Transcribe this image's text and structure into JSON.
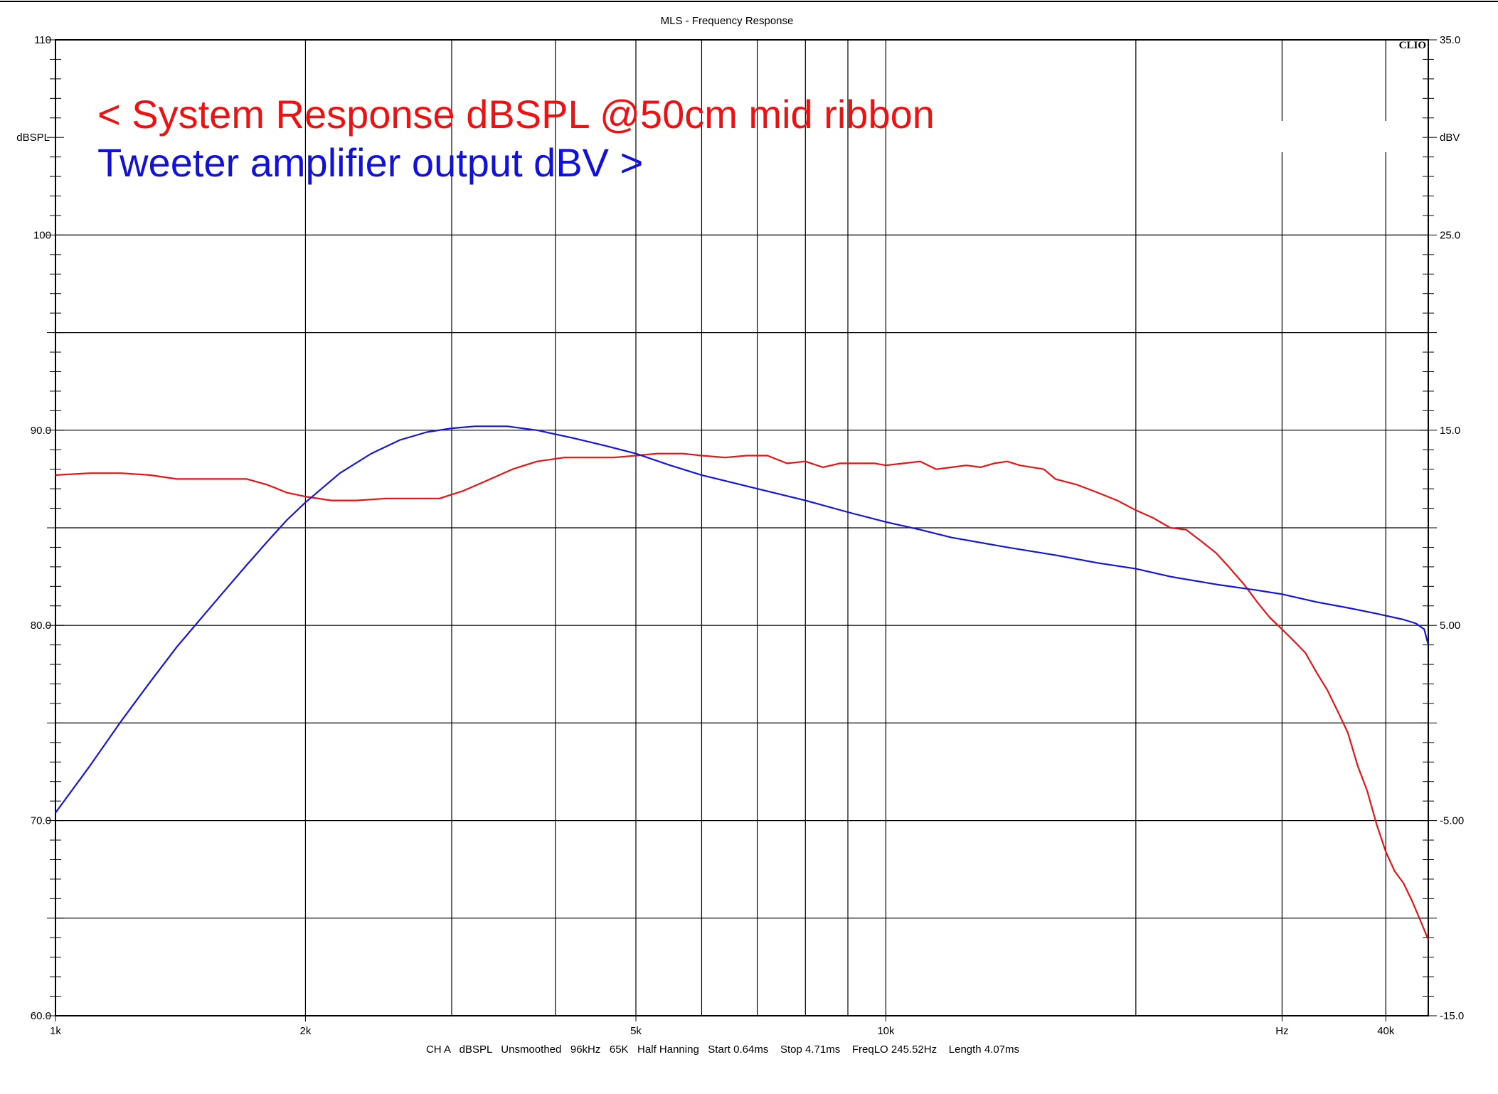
{
  "chart_data": {
    "type": "line",
    "title": "MLS - Frequency Response",
    "logo": "CLIO",
    "footer": "CH A   dBSPL   Unsmoothed   96kHz   65K   Half Hanning   Start 0.64ms    Stop 4.71ms    FreqLO 245.52Hz    Length 4.07ms",
    "x_scale": "log",
    "xlim": [
      1000,
      45000
    ],
    "x_tick_labels": [
      {
        "value": 1000,
        "label": "1k"
      },
      {
        "value": 2000,
        "label": "2k"
      },
      {
        "value": 5000,
        "label": "5k"
      },
      {
        "value": 10000,
        "label": "10k"
      },
      {
        "value": 30000,
        "label": "Hz"
      },
      {
        "value": 40000,
        "label": "40k"
      }
    ],
    "x_gridlines": [
      2000,
      3000,
      4000,
      5000,
      6000,
      7000,
      8000,
      9000,
      10000,
      20000,
      30000,
      40000
    ],
    "y_left": {
      "unit_label": "dBSPL",
      "ylim": [
        60,
        110
      ],
      "tick_labels": [
        {
          "value": 110,
          "label": "110"
        },
        {
          "value": 100,
          "label": "100"
        },
        {
          "value": 90,
          "label": "90.0"
        },
        {
          "value": 80,
          "label": "80.0"
        },
        {
          "value": 70,
          "label": "70.0"
        },
        {
          "value": 60,
          "label": "60.0"
        }
      ]
    },
    "y_right": {
      "unit_label": "dBV",
      "ylim": [
        -15,
        35
      ],
      "tick_labels": [
        {
          "value": 35,
          "label": "35.0"
        },
        {
          "value": 25,
          "label": "25.0"
        },
        {
          "value": 15,
          "label": "15.0"
        },
        {
          "value": 5,
          "label": "5.00"
        },
        {
          "value": -5,
          "label": "-5.00"
        },
        {
          "value": -15,
          "label": "-15.0"
        }
      ]
    },
    "y_gridlines_left_units": [
      60,
      65,
      70,
      75,
      80,
      85,
      90,
      95,
      100
    ],
    "annotations": [
      {
        "text": "< System Response dBSPL @50cm mid ribbon",
        "color": "#ee1111"
      },
      {
        "text": "Tweeter amplifier output dBV >",
        "color": "#1111dd"
      }
    ],
    "series": [
      {
        "axis": "left",
        "color": "#e81414",
        "points": [
          [
            1000,
            87.7
          ],
          [
            1100,
            87.8
          ],
          [
            1200,
            87.8
          ],
          [
            1300,
            87.7
          ],
          [
            1400,
            87.5
          ],
          [
            1500,
            87.5
          ],
          [
            1600,
            87.5
          ],
          [
            1700,
            87.5
          ],
          [
            1800,
            87.2
          ],
          [
            1900,
            86.8
          ],
          [
            2000,
            86.6
          ],
          [
            2150,
            86.4
          ],
          [
            2300,
            86.4
          ],
          [
            2500,
            86.5
          ],
          [
            2700,
            86.5
          ],
          [
            2900,
            86.5
          ],
          [
            3100,
            86.9
          ],
          [
            3300,
            87.4
          ],
          [
            3550,
            88.0
          ],
          [
            3800,
            88.4
          ],
          [
            4100,
            88.6
          ],
          [
            4400,
            88.6
          ],
          [
            4700,
            88.6
          ],
          [
            5000,
            88.7
          ],
          [
            5300,
            88.8
          ],
          [
            5700,
            88.8
          ],
          [
            6000,
            88.7
          ],
          [
            6400,
            88.6
          ],
          [
            6800,
            88.7
          ],
          [
            7200,
            88.7
          ],
          [
            7600,
            88.3
          ],
          [
            8000,
            88.4
          ],
          [
            8400,
            88.1
          ],
          [
            8800,
            88.3
          ],
          [
            9200,
            88.3
          ],
          [
            9700,
            88.3
          ],
          [
            10000,
            88.2
          ],
          [
            10500,
            88.3
          ],
          [
            11000,
            88.4
          ],
          [
            11500,
            88.0
          ],
          [
            12000,
            88.1
          ],
          [
            12500,
            88.2
          ],
          [
            13000,
            88.1
          ],
          [
            13500,
            88.3
          ],
          [
            14000,
            88.4
          ],
          [
            14500,
            88.2
          ],
          [
            15000,
            88.1
          ],
          [
            15500,
            88.0
          ],
          [
            16000,
            87.5
          ],
          [
            17000,
            87.2
          ],
          [
            18000,
            86.8
          ],
          [
            19000,
            86.4
          ],
          [
            20000,
            85.9
          ],
          [
            21000,
            85.5
          ],
          [
            22000,
            85.0
          ],
          [
            23000,
            84.9
          ],
          [
            24000,
            84.3
          ],
          [
            25000,
            83.7
          ],
          [
            26000,
            82.9
          ],
          [
            27000,
            82.1
          ],
          [
            28000,
            81.2
          ],
          [
            29000,
            80.4
          ],
          [
            30000,
            79.8
          ],
          [
            31000,
            79.2
          ],
          [
            32000,
            78.6
          ],
          [
            33000,
            77.6
          ],
          [
            34000,
            76.7
          ],
          [
            35000,
            75.6
          ],
          [
            36000,
            74.5
          ],
          [
            37000,
            72.8
          ],
          [
            38000,
            71.5
          ],
          [
            39000,
            69.8
          ],
          [
            40000,
            68.4
          ],
          [
            41000,
            67.4
          ],
          [
            42000,
            66.8
          ],
          [
            43000,
            65.9
          ],
          [
            44000,
            64.9
          ],
          [
            45000,
            63.9
          ]
        ]
      },
      {
        "axis": "right",
        "color": "#1515dd",
        "points": [
          [
            1000,
            -4.6
          ],
          [
            1100,
            -2.2
          ],
          [
            1200,
            0.1
          ],
          [
            1300,
            2.1
          ],
          [
            1400,
            3.9
          ],
          [
            1500,
            5.4
          ],
          [
            1600,
            6.8
          ],
          [
            1700,
            8.1
          ],
          [
            1800,
            9.3
          ],
          [
            1900,
            10.4
          ],
          [
            2000,
            11.3
          ],
          [
            2200,
            12.8
          ],
          [
            2400,
            13.8
          ],
          [
            2600,
            14.5
          ],
          [
            2800,
            14.9
          ],
          [
            3000,
            15.1
          ],
          [
            3200,
            15.2
          ],
          [
            3500,
            15.2
          ],
          [
            3800,
            15.0
          ],
          [
            4200,
            14.6
          ],
          [
            4600,
            14.2
          ],
          [
            5000,
            13.8
          ],
          [
            5500,
            13.2
          ],
          [
            6000,
            12.7
          ],
          [
            7000,
            12.0
          ],
          [
            8000,
            11.4
          ],
          [
            9000,
            10.8
          ],
          [
            10000,
            10.3
          ],
          [
            11000,
            9.9
          ],
          [
            12000,
            9.5
          ],
          [
            14000,
            9.0
          ],
          [
            16000,
            8.6
          ],
          [
            18000,
            8.2
          ],
          [
            20000,
            7.9
          ],
          [
            22000,
            7.5
          ],
          [
            25000,
            7.1
          ],
          [
            28000,
            6.8
          ],
          [
            30000,
            6.6
          ],
          [
            33000,
            6.2
          ],
          [
            36000,
            5.9
          ],
          [
            39000,
            5.6
          ],
          [
            42000,
            5.3
          ],
          [
            43500,
            5.1
          ],
          [
            44500,
            4.8
          ],
          [
            45000,
            4.0
          ]
        ]
      }
    ]
  }
}
